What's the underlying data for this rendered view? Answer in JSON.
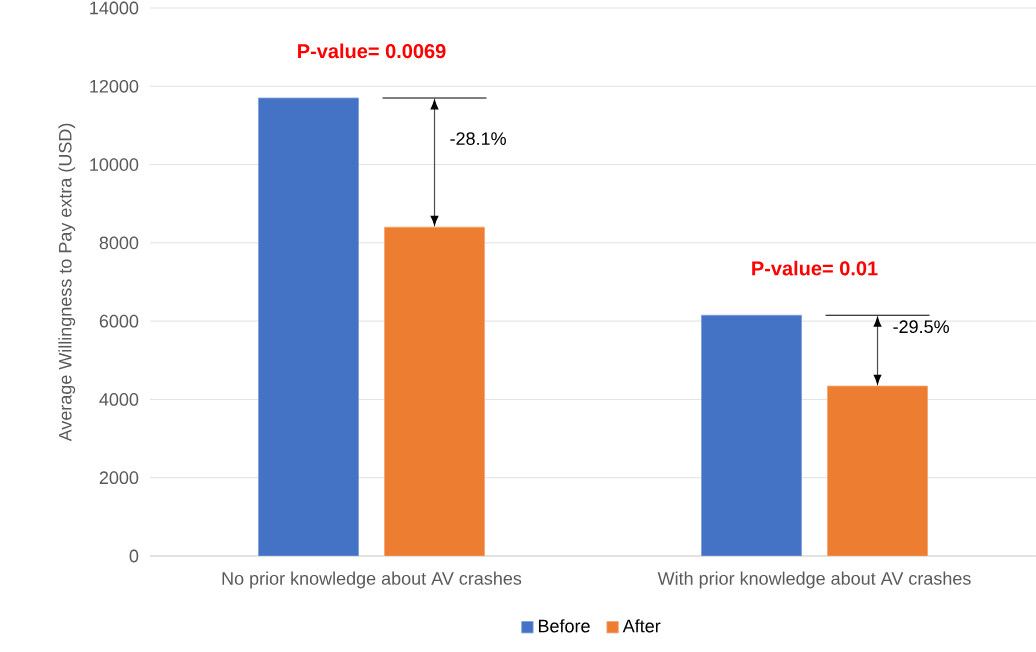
{
  "chart_data": {
    "type": "bar",
    "ylabel": "Average Willingness to Pay extra (USD)",
    "categories": [
      "No prior knowledge about AV crashes",
      "With prior knowledge about AV crashes"
    ],
    "series": [
      {
        "name": "Before",
        "color": "#4472c4",
        "values": [
          11700,
          6150
        ]
      },
      {
        "name": "After",
        "color": "#ed7d31",
        "values": [
          8400,
          4340
        ]
      }
    ],
    "ylim": [
      0,
      14000
    ],
    "yticks": [
      0,
      2000,
      4000,
      6000,
      8000,
      10000,
      12000,
      14000
    ],
    "grid": "y",
    "legend": "bottom",
    "annotations": [
      "P-value= 0.0069",
      "-28.1%",
      "P-value= 0.01",
      "-29.5%"
    ]
  }
}
